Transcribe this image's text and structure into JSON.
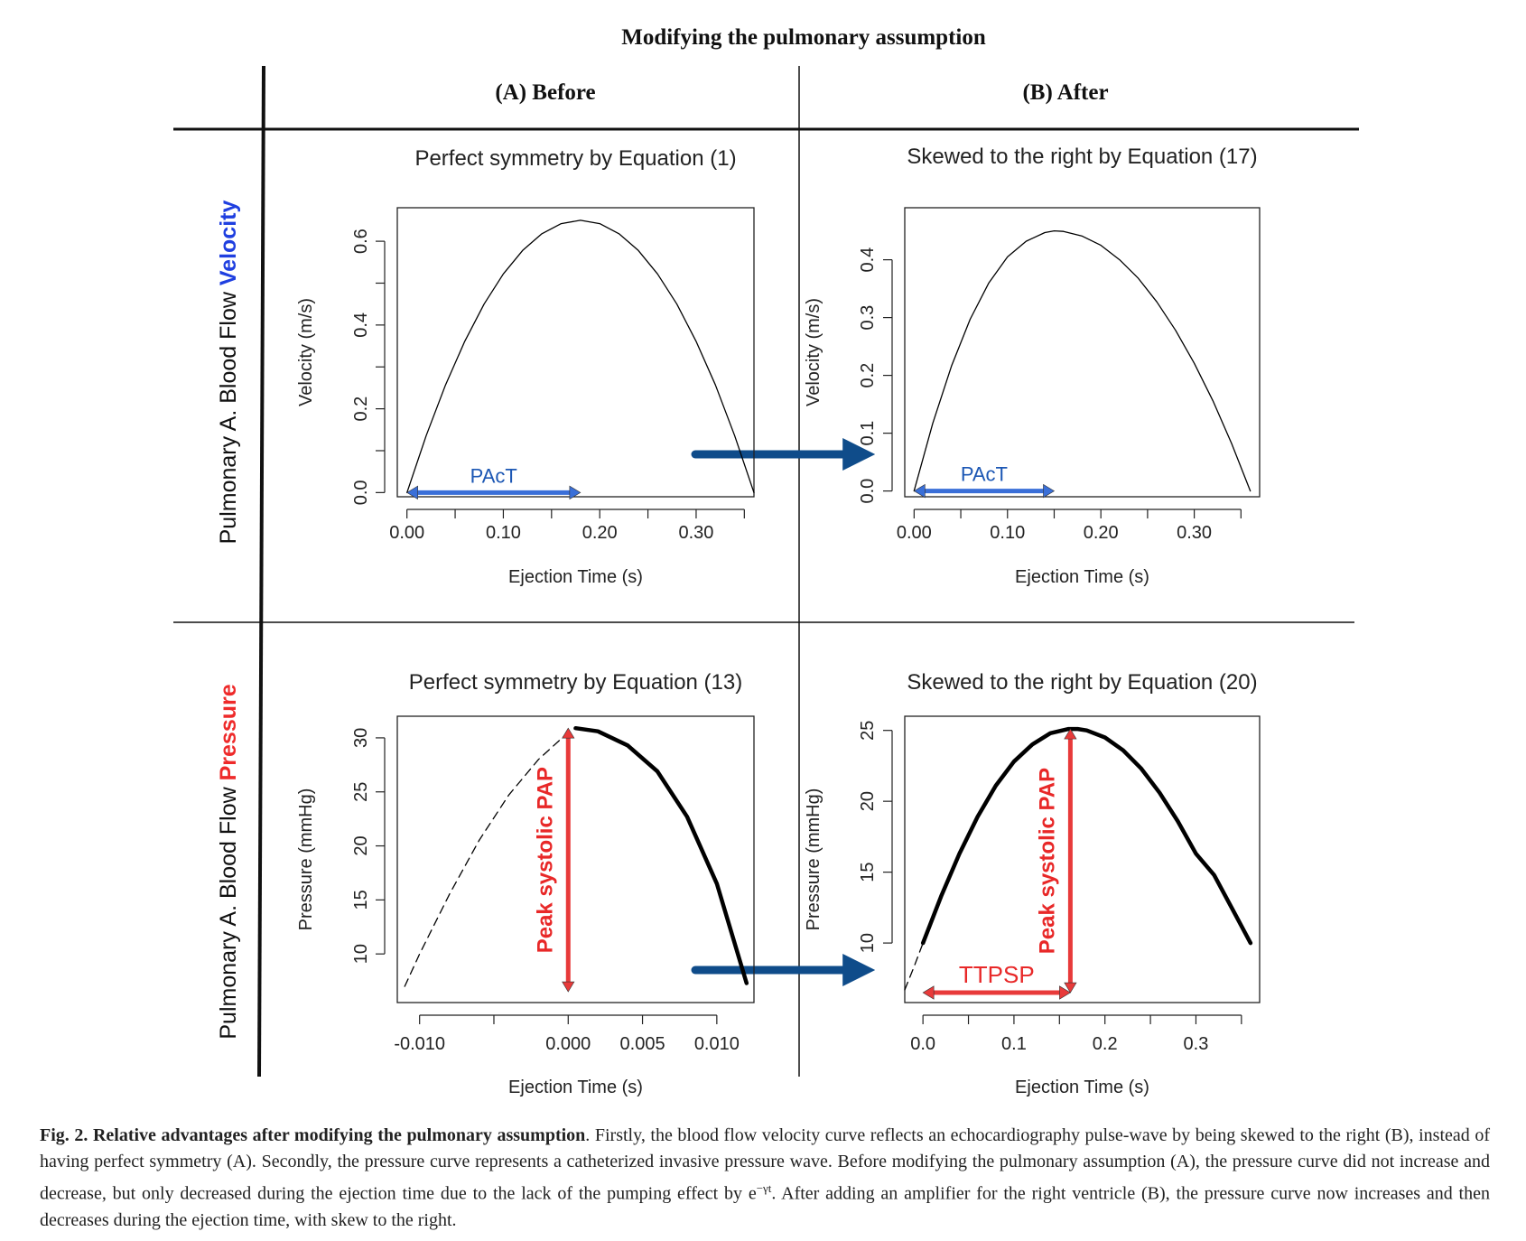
{
  "figure": {
    "main_title": "Modifying the pulmonary assumption",
    "col_titles": [
      "(A) Before",
      "(B) After"
    ],
    "row_label_velocity_prefix": "Pulmonary A. Blood Flow ",
    "row_label_velocity_word": "Velocity",
    "row_label_pressure_prefix": "Pulmonary A. Blood Flow ",
    "row_label_pressure_word": "Pressure",
    "colors": {
      "velocity_word": "#1f3fe0",
      "pressure_word": "#ee2a2a",
      "arrow": "#0f4c8a",
      "pact": "#3a6fd8",
      "ttp": "#e83a3a"
    }
  },
  "caption": {
    "lead": "Fig. 2. Relative advantages after modifying the pulmonary assumption",
    "body": ". Firstly, the blood flow velocity curve reflects an echocardiography pulse-wave by being skewed to the right (B), instead of having perfect symmetry (A). Secondly, the pressure curve represents a catheterized invasive pressure wave. Before modifying the pulmonary assumption (A), the pressure curve did not increase and decrease, but only decreased during the ejection time due to the lack of the pumping effect by e",
    "sup": "−γt",
    "tail": ". After adding an amplifier for the right ventricle (B), the pressure curve now increases and then decreases during the ejection time, with skew to the right."
  },
  "chart_data": [
    {
      "type": "line",
      "panel": "A-velocity",
      "title": "Perfect symmetry by Equation (1)",
      "xlabel": "Ejection Time (s)",
      "ylabel": "Velocity (m/s)",
      "xlim": [
        -0.01,
        0.36
      ],
      "ylim": [
        -0.01,
        0.68
      ],
      "xticks": [
        0.0,
        0.05,
        0.1,
        0.15,
        0.2,
        0.25,
        0.3,
        0.35
      ],
      "xtick_labels": [
        {
          "v": 0.0,
          "t": "0.00"
        },
        {
          "v": 0.1,
          "t": "0.10"
        },
        {
          "v": 0.2,
          "t": "0.20"
        },
        {
          "v": 0.3,
          "t": "0.30"
        }
      ],
      "yticks": [
        0.0,
        0.1,
        0.2,
        0.3,
        0.4,
        0.5,
        0.6
      ],
      "ytick_labels": [
        {
          "v": 0.0,
          "t": "0.0"
        },
        {
          "v": 0.2,
          "t": "0.2"
        },
        {
          "v": 0.4,
          "t": "0.4"
        },
        {
          "v": 0.6,
          "t": "0.6"
        }
      ],
      "series": [
        {
          "style": "thin",
          "x": [
            0.0,
            0.02,
            0.04,
            0.06,
            0.08,
            0.1,
            0.12,
            0.14,
            0.16,
            0.18,
            0.2,
            0.22,
            0.24,
            0.26,
            0.28,
            0.3,
            0.32,
            0.34,
            0.36
          ],
          "y": [
            0.0,
            0.136,
            0.257,
            0.361,
            0.45,
            0.522,
            0.578,
            0.618,
            0.642,
            0.65,
            0.642,
            0.618,
            0.578,
            0.522,
            0.45,
            0.361,
            0.257,
            0.136,
            0.0
          ]
        }
      ],
      "annotations": [
        {
          "type": "double-arrow",
          "text": "PAcT",
          "x0": 0.0,
          "x1": 0.18,
          "y": 0.0,
          "color": "#3a6fd8"
        }
      ]
    },
    {
      "type": "line",
      "panel": "B-velocity",
      "title": "Skewed to the right by Equation (17)",
      "xlabel": "Ejection Time (s)",
      "ylabel": "Velocity (m/s)",
      "xlim": [
        -0.01,
        0.37
      ],
      "ylim": [
        -0.01,
        0.49
      ],
      "xticks": [
        0.0,
        0.05,
        0.1,
        0.15,
        0.2,
        0.25,
        0.3,
        0.35
      ],
      "xtick_labels": [
        {
          "v": 0.0,
          "t": "0.00"
        },
        {
          "v": 0.1,
          "t": "0.10"
        },
        {
          "v": 0.2,
          "t": "0.20"
        },
        {
          "v": 0.3,
          "t": "0.30"
        }
      ],
      "yticks": [
        0.0,
        0.1,
        0.2,
        0.3,
        0.4
      ],
      "ytick_labels": [
        {
          "v": 0.0,
          "t": "0.0"
        },
        {
          "v": 0.1,
          "t": "0.1"
        },
        {
          "v": 0.2,
          "t": "0.2"
        },
        {
          "v": 0.3,
          "t": "0.3"
        },
        {
          "v": 0.4,
          "t": "0.4"
        }
      ],
      "series": [
        {
          "style": "thin",
          "x": [
            0.0,
            0.02,
            0.04,
            0.06,
            0.08,
            0.1,
            0.12,
            0.14,
            0.15,
            0.16,
            0.18,
            0.2,
            0.22,
            0.24,
            0.26,
            0.28,
            0.3,
            0.32,
            0.34,
            0.36
          ],
          "y": [
            0.0,
            0.117,
            0.216,
            0.297,
            0.36,
            0.405,
            0.432,
            0.447,
            0.45,
            0.449,
            0.441,
            0.425,
            0.4,
            0.368,
            0.327,
            0.278,
            0.221,
            0.156,
            0.082,
            0.0
          ]
        }
      ],
      "annotations": [
        {
          "type": "double-arrow",
          "text": "PAcT",
          "x0": 0.0,
          "x1": 0.15,
          "y": 0.0,
          "color": "#3a6fd8"
        }
      ]
    },
    {
      "type": "line",
      "panel": "A-pressure",
      "title": "Perfect symmetry by Equation (13)",
      "xlabel": "Ejection Time (s)",
      "ylabel": "Pressure (mmHg)",
      "xlim": [
        -0.0115,
        0.0125
      ],
      "ylim": [
        5.5,
        32
      ],
      "xticks": [
        -0.01,
        -0.005,
        0.0,
        0.005,
        0.01
      ],
      "xtick_labels": [
        {
          "v": -0.01,
          "t": "-0.010"
        },
        {
          "v": 0.0,
          "t": "0.000"
        },
        {
          "v": 0.005,
          "t": "0.005"
        },
        {
          "v": 0.01,
          "t": "0.010"
        }
      ],
      "yticks": [
        10,
        15,
        20,
        25,
        30
      ],
      "ytick_labels": [
        {
          "v": 10,
          "t": "10"
        },
        {
          "v": 15,
          "t": "15"
        },
        {
          "v": 20,
          "t": "20"
        },
        {
          "v": 25,
          "t": "25"
        },
        {
          "v": 30,
          "t": "30"
        }
      ],
      "series": [
        {
          "style": "dashed",
          "x": [
            -0.011,
            -0.01,
            -0.008,
            -0.006,
            -0.004,
            -0.002,
            0.0,
            0.0005
          ],
          "y": [
            7.0,
            10.0,
            15.5,
            20.5,
            24.7,
            28.0,
            30.5,
            30.9
          ]
        },
        {
          "style": "thick",
          "x": [
            0.0005,
            0.002,
            0.004,
            0.006,
            0.008,
            0.01,
            0.012
          ],
          "y": [
            30.9,
            30.6,
            29.3,
            26.9,
            22.7,
            16.5,
            7.3
          ]
        }
      ],
      "annotations": [
        {
          "type": "vertical-arrow",
          "text": "Peak systolic PAP",
          "x": 0.0,
          "y0": 6.5,
          "y1": 30.9,
          "color": "#e83a3a"
        }
      ]
    },
    {
      "type": "line",
      "panel": "B-pressure",
      "title": "Skewed to the right by Equation (20)",
      "xlabel": "Ejection Time (s)",
      "ylabel": "Pressure (mmHg)",
      "xlim": [
        -0.02,
        0.37
      ],
      "ylim": [
        5.8,
        26
      ],
      "xticks": [
        0.0,
        0.05,
        0.1,
        0.15,
        0.2,
        0.25,
        0.3,
        0.35
      ],
      "xtick_labels": [
        {
          "v": 0.0,
          "t": "0.0"
        },
        {
          "v": 0.1,
          "t": "0.1"
        },
        {
          "v": 0.2,
          "t": "0.2"
        },
        {
          "v": 0.3,
          "t": "0.3"
        }
      ],
      "yticks": [
        10,
        15,
        20,
        25
      ],
      "ytick_labels": [
        {
          "v": 10,
          "t": "10"
        },
        {
          "v": 15,
          "t": "15"
        },
        {
          "v": 20,
          "t": "20"
        },
        {
          "v": 25,
          "t": "25"
        }
      ],
      "series": [
        {
          "style": "dashed",
          "x": [
            -0.02,
            -0.01,
            0.0
          ],
          "y": [
            6.7,
            8.3,
            10.0
          ]
        },
        {
          "style": "thick",
          "x": [
            0.0,
            0.02,
            0.04,
            0.06,
            0.08,
            0.1,
            0.12,
            0.14,
            0.16,
            0.17,
            0.18,
            0.2,
            0.22,
            0.24,
            0.26,
            0.28,
            0.3,
            0.32,
            0.34,
            0.36
          ],
          "y": [
            10.0,
            13.3,
            16.3,
            18.9,
            21.1,
            22.8,
            24.0,
            24.8,
            25.1,
            25.1,
            25.0,
            24.5,
            23.6,
            22.3,
            20.6,
            18.6,
            16.3,
            14.8,
            12.4,
            10.0
          ]
        }
      ],
      "annotations": [
        {
          "type": "vertical-arrow",
          "text": "Peak systolic PAP",
          "x": 0.162,
          "y0": 6.5,
          "y1": 25.1,
          "color": "#e83a3a"
        },
        {
          "type": "double-arrow",
          "text": "TTPSP",
          "x0": 0.0,
          "x1": 0.162,
          "y": 6.5,
          "color": "#e83a3a"
        }
      ]
    }
  ]
}
